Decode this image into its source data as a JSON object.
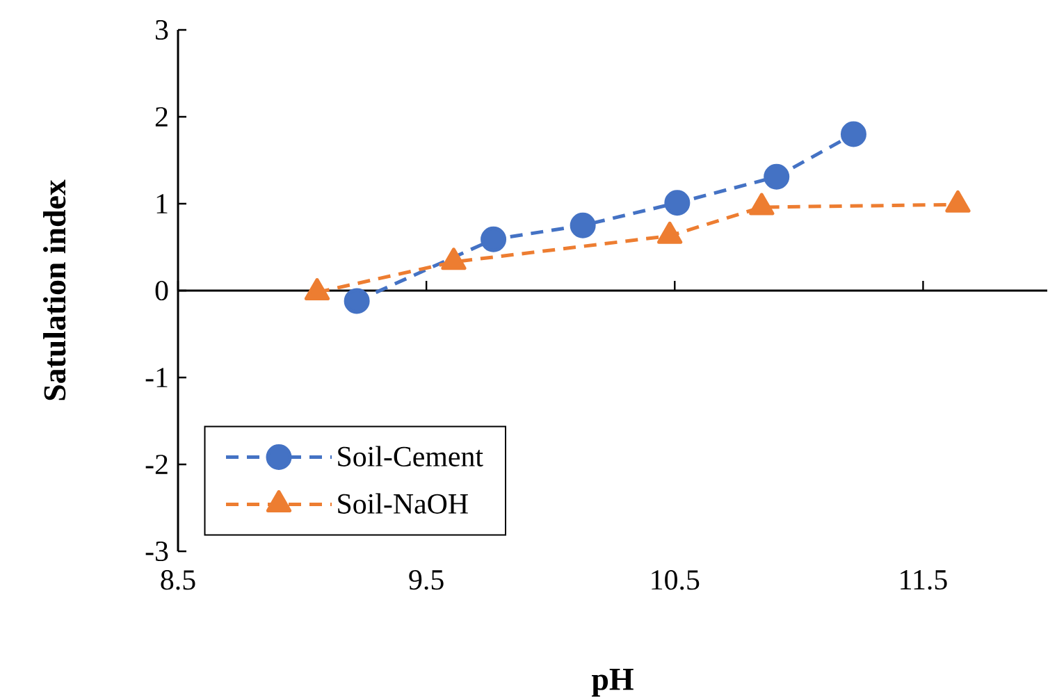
{
  "chart_data": {
    "type": "line",
    "xlabel": "pH",
    "ylabel": "Satulation index",
    "xlim": [
      8.5,
      12
    ],
    "xticks": [
      8.5,
      9.5,
      10.5,
      11.5
    ],
    "ylim": [
      -3,
      3
    ],
    "yticks": [
      -3,
      -2,
      -1,
      0,
      1,
      2,
      3
    ],
    "series": [
      {
        "name": "Soil-Cement",
        "color": "#4472c4",
        "marker": "circle",
        "line_style": "dashed",
        "x": [
          9.22,
          9.77,
          10.13,
          10.51,
          10.91,
          11.22
        ],
        "values": [
          -0.12,
          0.59,
          0.75,
          1.01,
          1.31,
          1.8
        ]
      },
      {
        "name": "Soil-NaOH",
        "color": "#ed7d31",
        "marker": "triangle",
        "line_style": "dashed",
        "x": [
          9.06,
          9.61,
          10.48,
          10.85,
          11.64
        ],
        "values": [
          -0.02,
          0.33,
          0.63,
          0.96,
          0.99
        ]
      }
    ],
    "ref_lines": [
      {
        "axis": "y",
        "value": 0,
        "color": "#000000"
      }
    ],
    "grid": false,
    "legend": "bottom left"
  }
}
